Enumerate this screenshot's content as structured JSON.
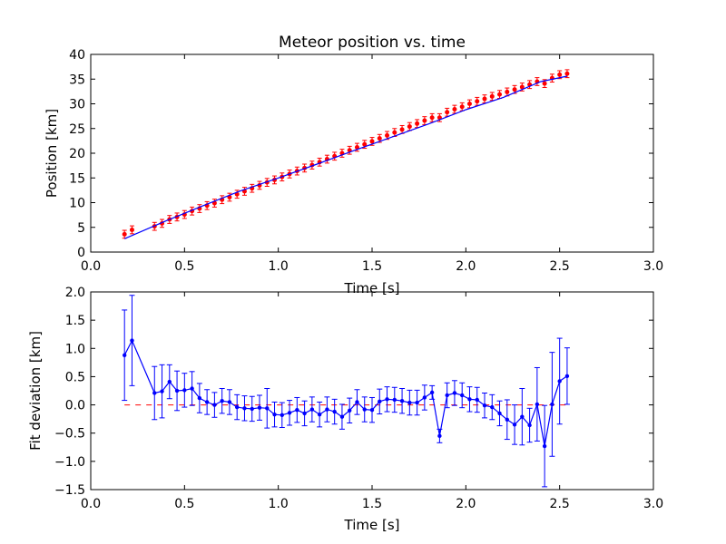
{
  "chart_data": [
    {
      "type": "scatter",
      "title": "Meteor position vs. time",
      "xlabel": "Time [s]",
      "ylabel": "Position [km]",
      "xlim": [
        0,
        3
      ],
      "ylim": [
        0,
        40
      ],
      "xticks": [
        "0.0",
        "0.5",
        "1.0",
        "1.5",
        "2.0",
        "2.5",
        "3.0"
      ],
      "yticks": [
        "0",
        "5",
        "10",
        "15",
        "20",
        "25",
        "30",
        "35",
        "40"
      ],
      "grid": false,
      "series": [
        {
          "kind": "errorbar-points",
          "color": "#ff0000",
          "x": [
            0.18,
            0.22,
            0.34,
            0.38,
            0.42,
            0.46,
            0.5,
            0.54,
            0.58,
            0.62,
            0.66,
            0.7,
            0.74,
            0.78,
            0.82,
            0.86,
            0.9,
            0.94,
            0.98,
            1.02,
            1.06,
            1.1,
            1.14,
            1.18,
            1.22,
            1.26,
            1.3,
            1.34,
            1.38,
            1.42,
            1.46,
            1.5,
            1.54,
            1.58,
            1.62,
            1.66,
            1.7,
            1.74,
            1.78,
            1.82,
            1.86,
            1.9,
            1.94,
            1.98,
            2.02,
            2.06,
            2.1,
            2.14,
            2.18,
            2.22,
            2.26,
            2.3,
            2.34,
            2.38,
            2.42,
            2.46,
            2.5,
            2.54
          ],
          "y": [
            3.6,
            4.5,
            5.2,
            5.8,
            6.6,
            7.1,
            7.6,
            8.3,
            8.8,
            9.4,
            9.9,
            10.6,
            11.1,
            11.7,
            12.3,
            12.9,
            13.5,
            14.1,
            14.6,
            15.2,
            15.8,
            16.4,
            17.0,
            17.6,
            18.2,
            18.8,
            19.4,
            20.0,
            20.6,
            21.2,
            21.8,
            22.4,
            23.0,
            23.6,
            24.2,
            24.8,
            25.4,
            26.0,
            26.6,
            27.2,
            27.2,
            28.3,
            28.9,
            29.4,
            30.0,
            30.5,
            31.0,
            31.5,
            31.9,
            32.4,
            32.9,
            33.4,
            33.9,
            34.5,
            34.1,
            35.2,
            35.9,
            36.1
          ],
          "yerr": 0.8
        },
        {
          "kind": "fit-line",
          "color": "#0000ff",
          "x": [
            0.18,
            0.4,
            0.6,
            0.8,
            1.0,
            1.2,
            1.4,
            1.6,
            1.8,
            2.0,
            2.2,
            2.4,
            2.54
          ],
          "y": [
            2.7,
            6.3,
            9.4,
            12.4,
            15.0,
            17.7,
            20.5,
            23.2,
            25.9,
            28.8,
            31.3,
            34.5,
            35.6
          ]
        }
      ]
    },
    {
      "type": "line",
      "xlabel": "Time [s]",
      "ylabel": "Fit deviation [km]",
      "xlim": [
        0,
        3
      ],
      "ylim": [
        -1.5,
        2.0
      ],
      "xticks": [
        "0.0",
        "0.5",
        "1.0",
        "1.5",
        "2.0",
        "2.5",
        "3.0"
      ],
      "yticks": [
        "−1.5",
        "−1.0",
        "−0.5",
        "0.0",
        "0.5",
        "1.0",
        "1.5",
        "2.0"
      ],
      "grid": false,
      "zero_line": {
        "color": "#ff0000",
        "style": "dashed",
        "y": 0.0,
        "x_range": [
          0.18,
          2.54
        ]
      },
      "series": [
        {
          "color": "#0000ff",
          "x": [
            0.18,
            0.22,
            0.34,
            0.38,
            0.42,
            0.46,
            0.5,
            0.54,
            0.58,
            0.62,
            0.66,
            0.7,
            0.74,
            0.78,
            0.82,
            0.86,
            0.9,
            0.94,
            0.98,
            1.02,
            1.06,
            1.1,
            1.14,
            1.18,
            1.22,
            1.26,
            1.3,
            1.34,
            1.38,
            1.42,
            1.46,
            1.5,
            1.54,
            1.58,
            1.62,
            1.66,
            1.7,
            1.74,
            1.78,
            1.82,
            1.86,
            1.9,
            1.94,
            1.98,
            2.02,
            2.06,
            2.1,
            2.14,
            2.18,
            2.22,
            2.26,
            2.3,
            2.34,
            2.38,
            2.42,
            2.46,
            2.5,
            2.54
          ],
          "y": [
            0.88,
            1.14,
            0.21,
            0.24,
            0.41,
            0.25,
            0.26,
            0.29,
            0.12,
            0.05,
            0.0,
            0.07,
            0.05,
            -0.04,
            -0.06,
            -0.07,
            -0.05,
            -0.06,
            -0.17,
            -0.18,
            -0.14,
            -0.09,
            -0.15,
            -0.08,
            -0.17,
            -0.08,
            -0.12,
            -0.21,
            -0.1,
            0.05,
            -0.08,
            -0.09,
            0.06,
            0.1,
            0.09,
            0.07,
            0.04,
            0.04,
            0.13,
            0.22,
            -0.55,
            0.17,
            0.21,
            0.17,
            0.1,
            0.09,
            -0.01,
            -0.04,
            -0.15,
            -0.26,
            -0.35,
            -0.21,
            -0.36,
            0.01,
            -0.73,
            0.01,
            0.42,
            0.51
          ],
          "yerr": [
            0.8,
            0.8,
            0.47,
            0.47,
            0.3,
            0.35,
            0.3,
            0.3,
            0.26,
            0.22,
            0.22,
            0.22,
            0.22,
            0.22,
            0.22,
            0.22,
            0.22,
            0.35,
            0.22,
            0.22,
            0.22,
            0.22,
            0.22,
            0.22,
            0.22,
            0.22,
            0.22,
            0.22,
            0.22,
            0.22,
            0.22,
            0.22,
            0.22,
            0.22,
            0.22,
            0.22,
            0.22,
            0.22,
            0.22,
            0.12,
            0.12,
            0.22,
            0.22,
            0.22,
            0.22,
            0.22,
            0.22,
            0.22,
            0.22,
            0.35,
            0.35,
            0.5,
            0.3,
            0.65,
            0.72,
            0.92,
            0.76,
            0.5
          ]
        }
      ]
    }
  ]
}
